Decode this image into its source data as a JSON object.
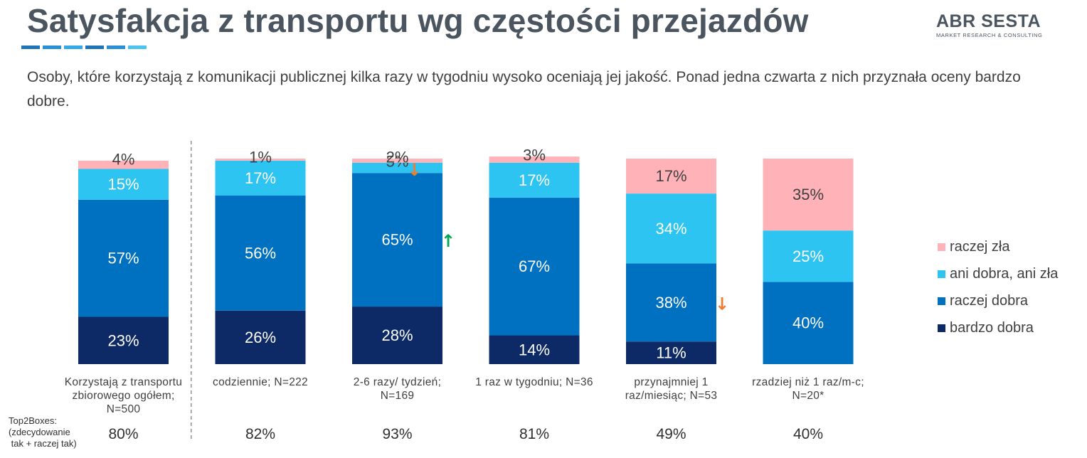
{
  "title": "Satysfakcja z transportu wg częstości przejazdów",
  "logo": {
    "main": "ABR SESTA",
    "sub": "MARKET RESEARCH & CONSULTING"
  },
  "subtitle": "Osoby, które korzystają z komunikacji publicznej kilka razy w tygodniu wysoko oceniają jej jakość. Ponad jedna czwarta z nich przyznała oceny bardzo dobre.",
  "colors": {
    "title_accent": [
      "#1f73b7",
      "#2a8fd6",
      "#35a9e8",
      "#1f73b7",
      "#2a8fd6",
      "#4cc2f0"
    ],
    "raczej_zla": "#ffb3b8",
    "ani_dobra_ani_zla": "#2ec4f2",
    "raczej_dobra": "#0070c0",
    "bardzo_dobra": "#0d2a66",
    "arrow_down": "#ed7d31",
    "arrow_up": "#00a651"
  },
  "legend": [
    {
      "key": "raczej_zla",
      "label": "raczej zła"
    },
    {
      "key": "ani_dobra_ani_zla",
      "label": "ani dobra, ani zła"
    },
    {
      "key": "raczej_dobra",
      "label": "raczej dobra"
    },
    {
      "key": "bardzo_dobra",
      "label": "bardzo dobra"
    }
  ],
  "top2": {
    "caption": "Top2Boxes:\n(zdecydowanie\n tak + raczej tak)",
    "values": [
      "80%",
      "82%",
      "93%",
      "81%",
      "49%",
      "40%"
    ]
  },
  "chart_data": {
    "type": "bar",
    "stacked": true,
    "unit": "%",
    "categories": [
      "Korzystają z transportu zbiorowego ogółem; N=500",
      "codziennie; N=222",
      "2-6 razy/ tydzień; N=169",
      "1 raz w tygodniu; N=36",
      "przynajmniej 1 raz/miesiąc; N=53",
      "rzadziej niż 1 raz/m-c; N=20*"
    ],
    "category_lines": [
      [
        "Korzystają z transportu",
        "zbiorowego ogółem;",
        "N=500"
      ],
      [
        "codziennie; N=222"
      ],
      [
        "2-6 razy/ tydzień;",
        "N=169"
      ],
      [
        "1 raz w tygodniu; N=36"
      ],
      [
        "przynajmniej 1",
        "raz/miesiąc; N=53"
      ],
      [
        "rzadziej niż 1 raz/m-c;",
        "N=20*"
      ]
    ],
    "series": [
      {
        "name": "bardzo dobra",
        "key": "bardzo_dobra",
        "values": [
          23,
          26,
          28,
          14,
          11,
          0
        ],
        "labels": [
          "23%",
          "26%",
          "28%",
          "14%",
          "11%",
          ""
        ]
      },
      {
        "name": "raczej dobra",
        "key": "raczej_dobra",
        "values": [
          57,
          56,
          65,
          67,
          38,
          40
        ],
        "labels": [
          "57%",
          "56%",
          "65%",
          "67%",
          "38%",
          "40%"
        ]
      },
      {
        "name": "ani dobra, ani zła",
        "key": "ani_dobra_ani_zla",
        "values": [
          15,
          17,
          5,
          17,
          34,
          25
        ],
        "labels": [
          "15%",
          "17%",
          "5%",
          "17%",
          "34%",
          "25%"
        ]
      },
      {
        "name": "raczej zła",
        "key": "raczej_zla",
        "values": [
          4,
          1,
          2,
          3,
          17,
          35
        ],
        "labels": [
          "4%",
          "1%",
          "2%",
          "3%",
          "17%",
          "35%"
        ]
      }
    ],
    "significance_arrows": [
      {
        "category_index": 2,
        "series": "ani dobra, ani zła",
        "direction": "down",
        "glyph": "↓"
      },
      {
        "category_index": 2,
        "series": "raczej dobra",
        "direction": "up",
        "glyph": "↑"
      },
      {
        "category_index": 4,
        "series": "raczej dobra",
        "direction": "down",
        "glyph": "↓"
      }
    ],
    "ylim": [
      0,
      100
    ],
    "grid": false,
    "separator_after_category": 0,
    "legend_position": "right"
  }
}
